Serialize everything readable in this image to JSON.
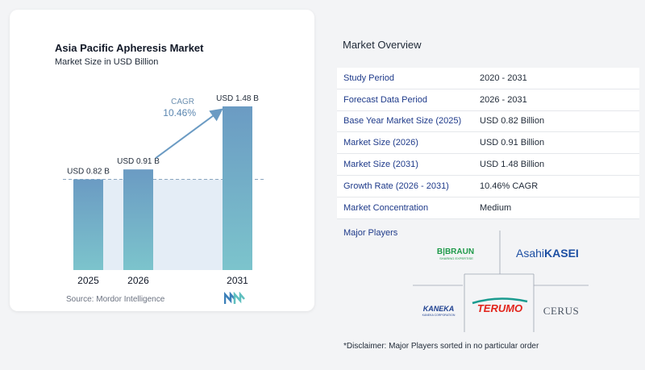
{
  "left_card": {
    "title": "Asia Pacific Apheresis Market",
    "subtitle": "Market Size in USD Billion",
    "source": "Source:  Mordor Intelligence",
    "cagr_label": "CAGR",
    "cagr_value": "10.46%"
  },
  "chart_data": {
    "type": "bar",
    "title": "Asia Pacific Apheresis Market",
    "subtitle": "Market Size in USD Billion",
    "categories": [
      "2025",
      "2026",
      "2031"
    ],
    "values": [
      0.82,
      0.91,
      1.48
    ],
    "data_labels": [
      "USD 0.82 B",
      "USD 0.91 B",
      "USD 1.48 B"
    ],
    "reference_line": 0.82,
    "annotation": {
      "label": "CAGR",
      "value": "10.46%"
    },
    "ylim": [
      0,
      1.48
    ],
    "grid": false,
    "colors": {
      "bar_top": "#6b9bc3",
      "bar_bottom": "#7cc4cc",
      "shade": "#e4edf6",
      "arrow": "#6b9bc3",
      "dashed": "#8aa5bf"
    }
  },
  "overview": {
    "title": "Market Overview",
    "rows": [
      {
        "label": "Study Period",
        "value": "2020 - 2031"
      },
      {
        "label": "Forecast Data Period",
        "value": "2026 - 2031"
      },
      {
        "label": "Base Year Market Size (2025)",
        "value": "USD 0.82 Billion"
      },
      {
        "label": "Market Size (2026)",
        "value": "USD 0.91 Billion"
      },
      {
        "label": "Market Size (2031)",
        "value": "USD 1.48 Billion"
      },
      {
        "label": "Growth Rate (2026 - 2031)",
        "value": "10.46% CAGR"
      },
      {
        "label": "Market Concentration",
        "value": "Medium"
      }
    ]
  },
  "players": {
    "title": "Major Players",
    "logos": {
      "bbraun": "B|BRAUN",
      "bbraun_tag": "SHARING EXPERTISE",
      "asahi_a": "Asahi",
      "asahi_b": "KASEI",
      "kaneka": "KANEKA",
      "kaneka_tag": "KANEKA CORPORATION",
      "terumo": "TERUMO",
      "cerus": "CERUS"
    }
  },
  "disclaimer": "*Disclaimer: Major Players sorted in no particular order"
}
